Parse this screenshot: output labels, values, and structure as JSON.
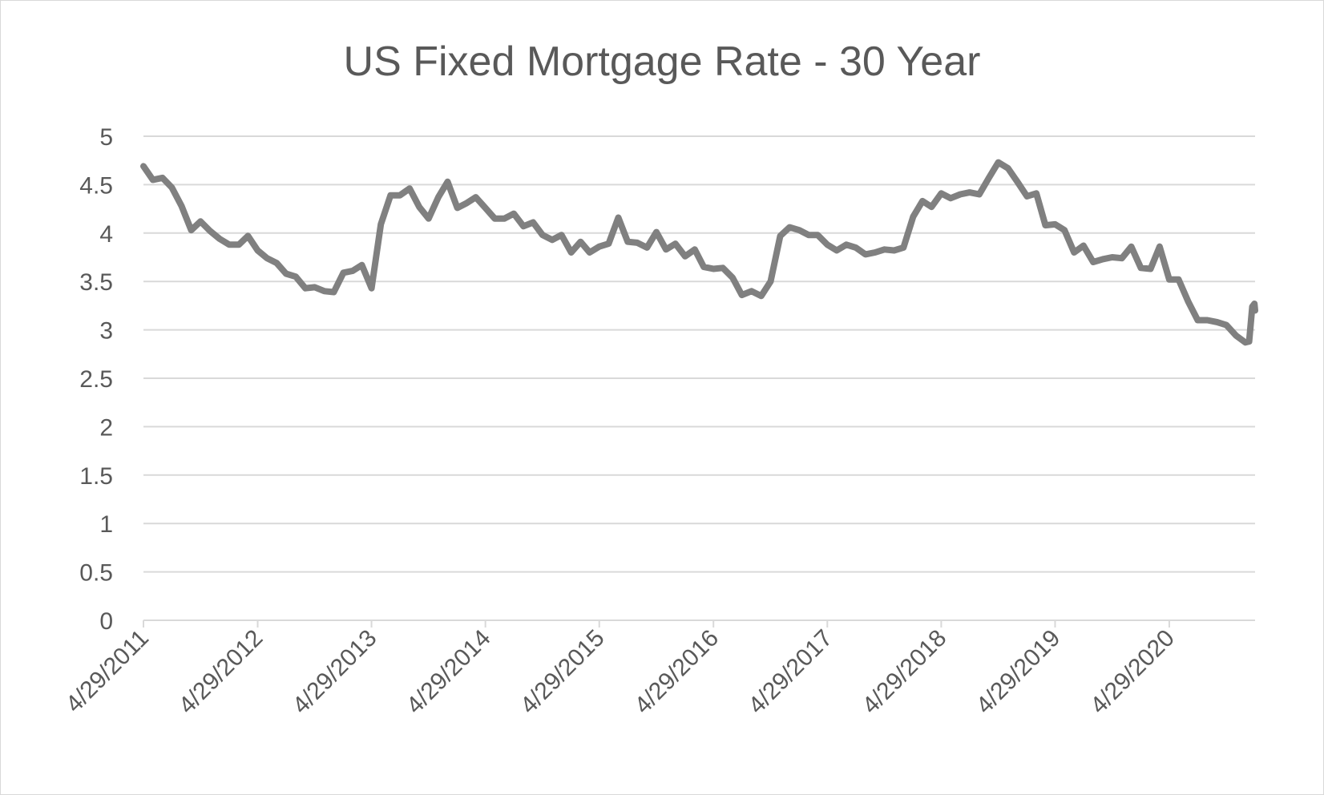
{
  "chart_data": {
    "type": "line",
    "title": "US Fixed Mortgage Rate - 30 Year",
    "xlabel": "",
    "ylabel": "",
    "ylim": [
      0,
      5
    ],
    "yticks": [
      0,
      0.5,
      1,
      1.5,
      2,
      2.5,
      3,
      3.5,
      4,
      4.5,
      5
    ],
    "ytick_labels": [
      "0",
      "0.5",
      "1",
      "1.5",
      "2",
      "2.5",
      "3",
      "3.5",
      "4",
      "4.5",
      "5"
    ],
    "xlim": [
      "2011-04-29",
      "2021-01-29"
    ],
    "xtick_labels": [
      "4/29/2011",
      "4/29/2012",
      "4/29/2013",
      "4/29/2014",
      "4/29/2015",
      "4/29/2016",
      "4/29/2017",
      "4/29/2018",
      "4/29/2019",
      "4/29/2020"
    ],
    "grid": true,
    "legend": "none",
    "series": [
      {
        "color": "#808080",
        "points": [
          [
            "2011-04-29",
            4.69
          ],
          [
            "2011-05-29",
            4.55
          ],
          [
            "2011-06-29",
            4.57
          ],
          [
            "2011-07-29",
            4.47
          ],
          [
            "2011-08-29",
            4.28
          ],
          [
            "2011-09-29",
            4.03
          ],
          [
            "2011-10-29",
            4.12
          ],
          [
            "2011-11-29",
            4.02
          ],
          [
            "2011-12-29",
            3.94
          ],
          [
            "2012-01-29",
            3.88
          ],
          [
            "2012-02-29",
            3.88
          ],
          [
            "2012-03-29",
            3.97
          ],
          [
            "2012-04-29",
            3.82
          ],
          [
            "2012-05-29",
            3.74
          ],
          [
            "2012-06-29",
            3.69
          ],
          [
            "2012-07-29",
            3.58
          ],
          [
            "2012-08-29",
            3.55
          ],
          [
            "2012-09-29",
            3.43
          ],
          [
            "2012-10-29",
            3.44
          ],
          [
            "2012-11-29",
            3.4
          ],
          [
            "2012-12-29",
            3.39
          ],
          [
            "2013-01-29",
            3.59
          ],
          [
            "2013-02-28",
            3.61
          ],
          [
            "2013-03-29",
            3.67
          ],
          [
            "2013-04-29",
            3.43
          ],
          [
            "2013-05-29",
            4.09
          ],
          [
            "2013-06-29",
            4.39
          ],
          [
            "2013-07-29",
            4.39
          ],
          [
            "2013-08-29",
            4.46
          ],
          [
            "2013-09-29",
            4.27
          ],
          [
            "2013-10-29",
            4.15
          ],
          [
            "2013-11-29",
            4.37
          ],
          [
            "2013-12-29",
            4.53
          ],
          [
            "2014-01-29",
            4.26
          ],
          [
            "2014-02-28",
            4.31
          ],
          [
            "2014-03-29",
            4.37
          ],
          [
            "2014-04-29",
            4.26
          ],
          [
            "2014-05-29",
            4.15
          ],
          [
            "2014-06-29",
            4.15
          ],
          [
            "2014-07-29",
            4.2
          ],
          [
            "2014-08-29",
            4.07
          ],
          [
            "2014-09-29",
            4.11
          ],
          [
            "2014-10-29",
            3.98
          ],
          [
            "2014-11-29",
            3.93
          ],
          [
            "2014-12-29",
            3.98
          ],
          [
            "2015-01-29",
            3.8
          ],
          [
            "2015-02-28",
            3.91
          ],
          [
            "2015-03-29",
            3.8
          ],
          [
            "2015-04-29",
            3.86
          ],
          [
            "2015-05-29",
            3.89
          ],
          [
            "2015-06-29",
            4.16
          ],
          [
            "2015-07-29",
            3.91
          ],
          [
            "2015-08-29",
            3.9
          ],
          [
            "2015-09-29",
            3.85
          ],
          [
            "2015-10-29",
            4.01
          ],
          [
            "2015-11-29",
            3.83
          ],
          [
            "2015-12-29",
            3.89
          ],
          [
            "2016-01-29",
            3.76
          ],
          [
            "2016-02-29",
            3.83
          ],
          [
            "2016-03-29",
            3.65
          ],
          [
            "2016-04-29",
            3.63
          ],
          [
            "2016-05-29",
            3.64
          ],
          [
            "2016-06-29",
            3.54
          ],
          [
            "2016-07-29",
            3.36
          ],
          [
            "2016-08-29",
            3.4
          ],
          [
            "2016-09-29",
            3.35
          ],
          [
            "2016-10-29",
            3.5
          ],
          [
            "2016-11-29",
            3.97
          ],
          [
            "2016-12-29",
            4.06
          ],
          [
            "2017-01-29",
            4.03
          ],
          [
            "2017-02-28",
            3.98
          ],
          [
            "2017-03-29",
            3.98
          ],
          [
            "2017-04-29",
            3.88
          ],
          [
            "2017-05-29",
            3.82
          ],
          [
            "2017-06-29",
            3.88
          ],
          [
            "2017-07-29",
            3.85
          ],
          [
            "2017-08-29",
            3.78
          ],
          [
            "2017-09-29",
            3.8
          ],
          [
            "2017-10-29",
            3.83
          ],
          [
            "2017-11-29",
            3.82
          ],
          [
            "2017-12-29",
            3.85
          ],
          [
            "2018-01-29",
            4.17
          ],
          [
            "2018-02-28",
            4.33
          ],
          [
            "2018-03-29",
            4.27
          ],
          [
            "2018-04-29",
            4.41
          ],
          [
            "2018-05-29",
            4.36
          ],
          [
            "2018-06-29",
            4.4
          ],
          [
            "2018-07-29",
            4.42
          ],
          [
            "2018-08-29",
            4.4
          ],
          [
            "2018-09-29",
            4.57
          ],
          [
            "2018-10-29",
            4.73
          ],
          [
            "2018-11-29",
            4.67
          ],
          [
            "2018-12-29",
            4.53
          ],
          [
            "2019-01-29",
            4.38
          ],
          [
            "2019-02-28",
            4.41
          ],
          [
            "2019-03-29",
            4.08
          ],
          [
            "2019-04-29",
            4.09
          ],
          [
            "2019-05-29",
            4.03
          ],
          [
            "2019-06-29",
            3.8
          ],
          [
            "2019-07-29",
            3.87
          ],
          [
            "2019-08-29",
            3.7
          ],
          [
            "2019-09-29",
            3.73
          ],
          [
            "2019-10-29",
            3.75
          ],
          [
            "2019-11-29",
            3.74
          ],
          [
            "2019-12-29",
            3.86
          ],
          [
            "2020-01-29",
            3.64
          ],
          [
            "2020-02-29",
            3.63
          ],
          [
            "2020-03-29",
            3.86
          ],
          [
            "2020-04-29",
            3.52
          ],
          [
            "2020-05-29",
            3.52
          ],
          [
            "2020-06-29",
            3.29
          ],
          [
            "2020-07-29",
            3.1
          ],
          [
            "2020-08-29",
            3.1
          ],
          [
            "2020-09-29",
            3.08
          ],
          [
            "2020-10-29",
            3.05
          ],
          [
            "2020-11-29",
            2.94
          ],
          [
            "2020-12-29",
            2.87
          ],
          [
            "2021-01-10",
            2.88
          ],
          [
            "2021-01-20",
            3.24
          ],
          [
            "2021-01-27",
            3.27
          ],
          [
            "2021-01-29",
            3.2
          ]
        ]
      }
    ]
  }
}
